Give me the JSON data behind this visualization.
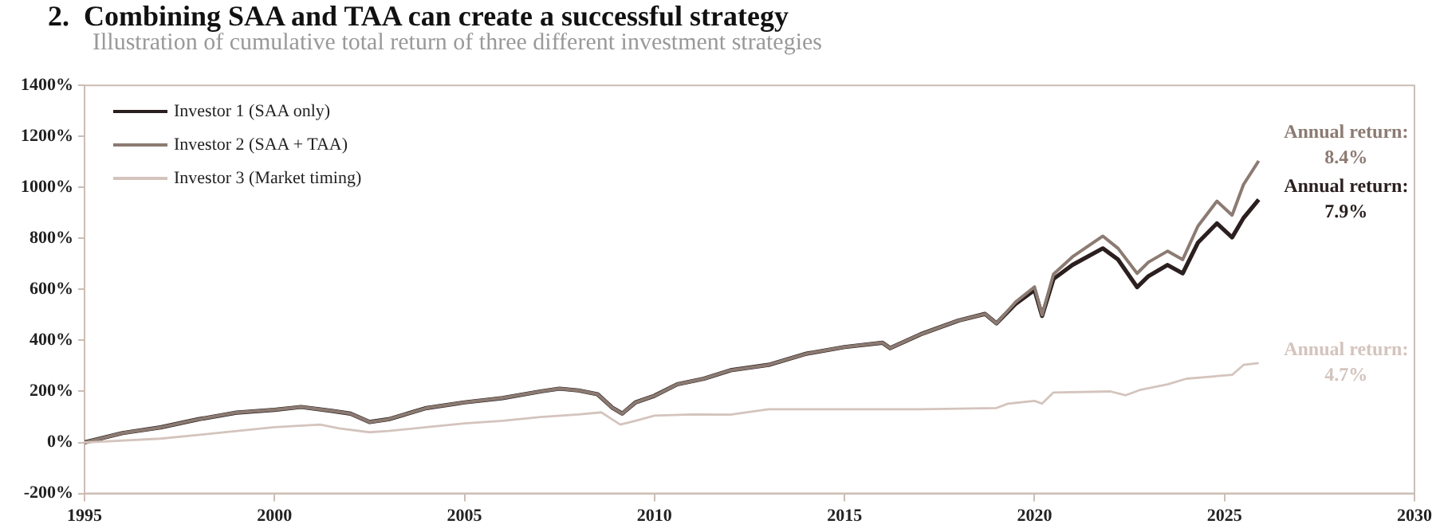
{
  "chart_data": {
    "type": "line",
    "title": "2.  Combining SAA and TAA can create a successful strategy",
    "subtitle": "Illustration of cumulative total return of three different investment strategies",
    "xlim": [
      1995,
      2030
    ],
    "xticks": [
      1995,
      2000,
      2005,
      2010,
      2015,
      2020,
      2025,
      2030
    ],
    "ylim": [
      -200,
      1400
    ],
    "yticks": [
      {
        "value": -200,
        "label": "-200%"
      },
      {
        "value": 0,
        "label": "0%"
      },
      {
        "value": 200,
        "label": "200%"
      },
      {
        "value": 400,
        "label": "400%"
      },
      {
        "value": 600,
        "label": "600%"
      },
      {
        "value": 800,
        "label": "800%"
      },
      {
        "value": 1000,
        "label": "1000%"
      },
      {
        "value": 1200,
        "label": "1200%"
      },
      {
        "value": 1400,
        "label": "1400%"
      }
    ],
    "grid": false,
    "legend": "top left",
    "marker": "none",
    "line_style": "solid",
    "series": [
      {
        "name": "Investor 1 (SAA only)",
        "color": "#2b1f1f",
        "x": [
          1995,
          1996,
          1997,
          1998,
          1999,
          2000,
          2000.7,
          2001.5,
          2002,
          2002.5,
          2003,
          2004,
          2005,
          2006,
          2007,
          2007.5,
          2008,
          2008.5,
          2008.9,
          2009.15,
          2009.5,
          2010,
          2010.6,
          2011.3,
          2012,
          2013,
          2014,
          2015,
          2016,
          2016.2,
          2017,
          2018,
          2018.7,
          2019,
          2019.5,
          2020,
          2020.2,
          2020.5,
          2021,
          2021.8,
          2022.2,
          2022.7,
          2023,
          2023.5,
          2023.9,
          2024.3,
          2024.8,
          2025.2,
          2025.5,
          2025.9
        ],
        "values": [
          0,
          37,
          59,
          91,
          117,
          128,
          139,
          124,
          113,
          80,
          91,
          135,
          157,
          174,
          200,
          211,
          204,
          189,
          135,
          113,
          157,
          183,
          228,
          250,
          283,
          304,
          348,
          374,
          391,
          370,
          424,
          478,
          504,
          467,
          543,
          598,
          496,
          641,
          696,
          761,
          717,
          609,
          652,
          696,
          663,
          783,
          859,
          804,
          880,
          952
        ]
      },
      {
        "name": "Investor 2 (SAA + TAA)",
        "color": "#8c7b72",
        "x": [
          1995,
          1996,
          1997,
          1998,
          1999,
          2000,
          2000.7,
          2001.5,
          2002,
          2002.5,
          2003,
          2004,
          2005,
          2006,
          2007,
          2007.5,
          2008,
          2008.5,
          2008.9,
          2009.15,
          2009.5,
          2010,
          2010.6,
          2011.3,
          2012,
          2013,
          2014,
          2015,
          2016,
          2016.2,
          2017,
          2018,
          2018.7,
          2019,
          2019.5,
          2020,
          2020.2,
          2020.5,
          2021,
          2021.8,
          2022.2,
          2022.7,
          2023,
          2023.5,
          2023.9,
          2024.3,
          2024.8,
          2025.2,
          2025.5,
          2025.9
        ],
        "values": [
          0,
          37,
          59,
          91,
          117,
          128,
          139,
          124,
          113,
          80,
          91,
          135,
          157,
          174,
          200,
          211,
          204,
          189,
          135,
          113,
          157,
          183,
          228,
          250,
          283,
          304,
          348,
          374,
          391,
          370,
          424,
          478,
          504,
          467,
          550,
          610,
          500,
          660,
          728,
          809,
          761,
          663,
          707,
          750,
          717,
          848,
          946,
          891,
          1011,
          1104
        ]
      },
      {
        "name": "Investor 3 (Market timing)",
        "color": "#d4c4bd",
        "x": [
          1995,
          1997,
          1998.5,
          2000,
          2001.2,
          2001.7,
          2002.5,
          2003,
          2004,
          2005,
          2006,
          2007,
          2008,
          2008.6,
          2009.1,
          2009.5,
          2010,
          2011,
          2012,
          2013,
          2015,
          2017,
          2019,
          2019.3,
          2020,
          2020.2,
          2020.5,
          2022,
          2022.4,
          2022.8,
          2023.5,
          2024,
          2025.2,
          2025.5,
          2025.9
        ],
        "values": [
          0,
          15,
          37,
          60,
          70,
          55,
          40,
          45,
          60,
          75,
          85,
          100,
          110,
          118,
          70,
          85,
          105,
          110,
          109,
          130,
          130,
          130,
          135,
          152,
          163,
          152,
          196,
          200,
          185,
          207,
          228,
          250,
          265,
          304,
          311
        ]
      }
    ],
    "annotations": [
      "Annual return:\n7.9%",
      "Annual return:\n8.4%",
      "Annual return:\n4.7%"
    ]
  }
}
